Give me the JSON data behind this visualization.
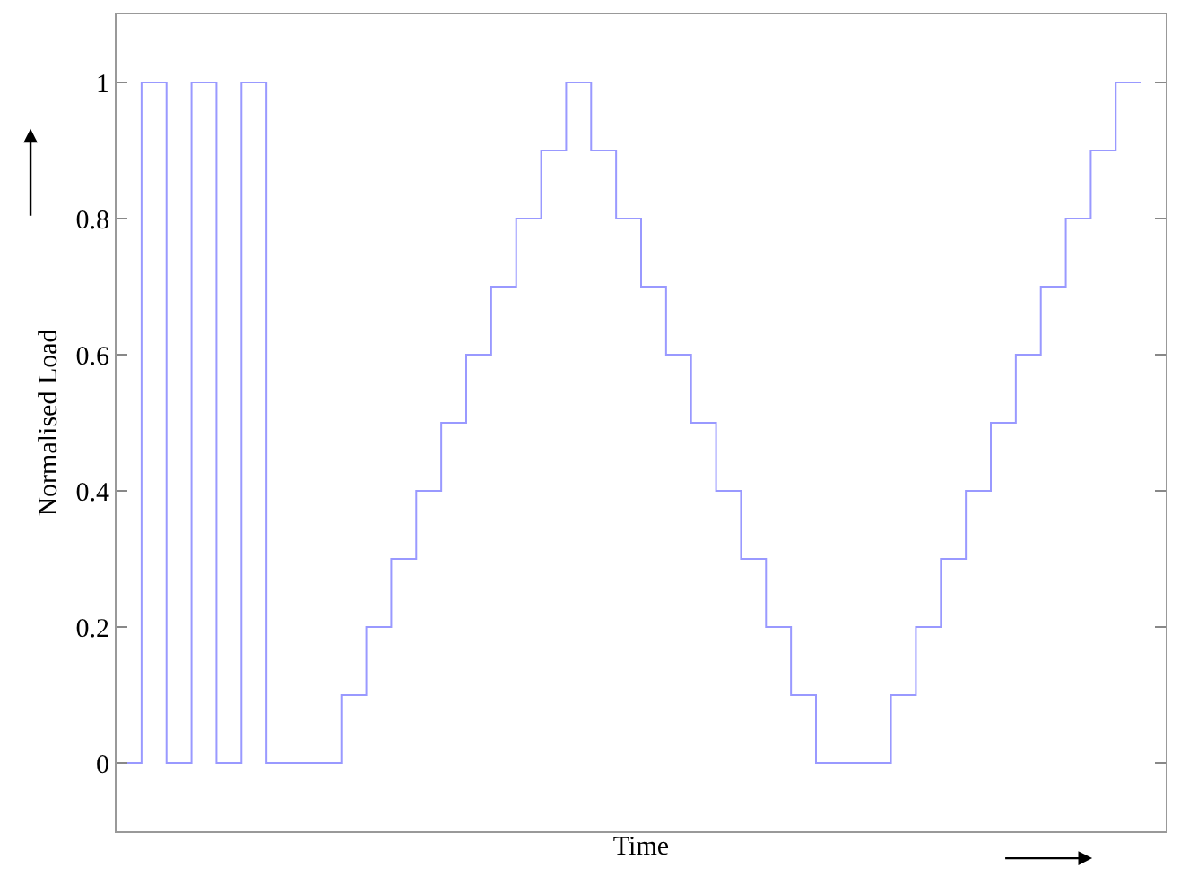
{
  "chart_data": {
    "type": "step",
    "xlabel": "Time",
    "ylabel": "Normalised Load",
    "categories": [
      null,
      null,
      null,
      null,
      null,
      null,
      null,
      null,
      null,
      null,
      null,
      null,
      null,
      null,
      null,
      null,
      null,
      null,
      null,
      null,
      null,
      null,
      null,
      null,
      null,
      null,
      null,
      null,
      null,
      null,
      null,
      null,
      null,
      null,
      null,
      null,
      null,
      null,
      null,
      null,
      null,
      null
    ],
    "series": [
      {
        "color": "#9999ff",
        "values": [
          0,
          1,
          0,
          1,
          0,
          1,
          0,
          0,
          0,
          0.1,
          0.2,
          0.3,
          0.4,
          0.5,
          0.6,
          0.7,
          0.8,
          0.9,
          1,
          0.9,
          0.8,
          0.7,
          0.6,
          0.5,
          0.4,
          0.3,
          0.2,
          0.1,
          0,
          0,
          0,
          0.1,
          0.2,
          0.3,
          0.4,
          0.5,
          0.6,
          0.7,
          0.8,
          0.9,
          1,
          1
        ]
      }
    ],
    "ylim": [
      -0.1,
      1.1
    ],
    "yticks": [
      0,
      0.2,
      0.4,
      0.6,
      0.8,
      1
    ],
    "tick_labels": "y",
    "line_style": "solid"
  }
}
